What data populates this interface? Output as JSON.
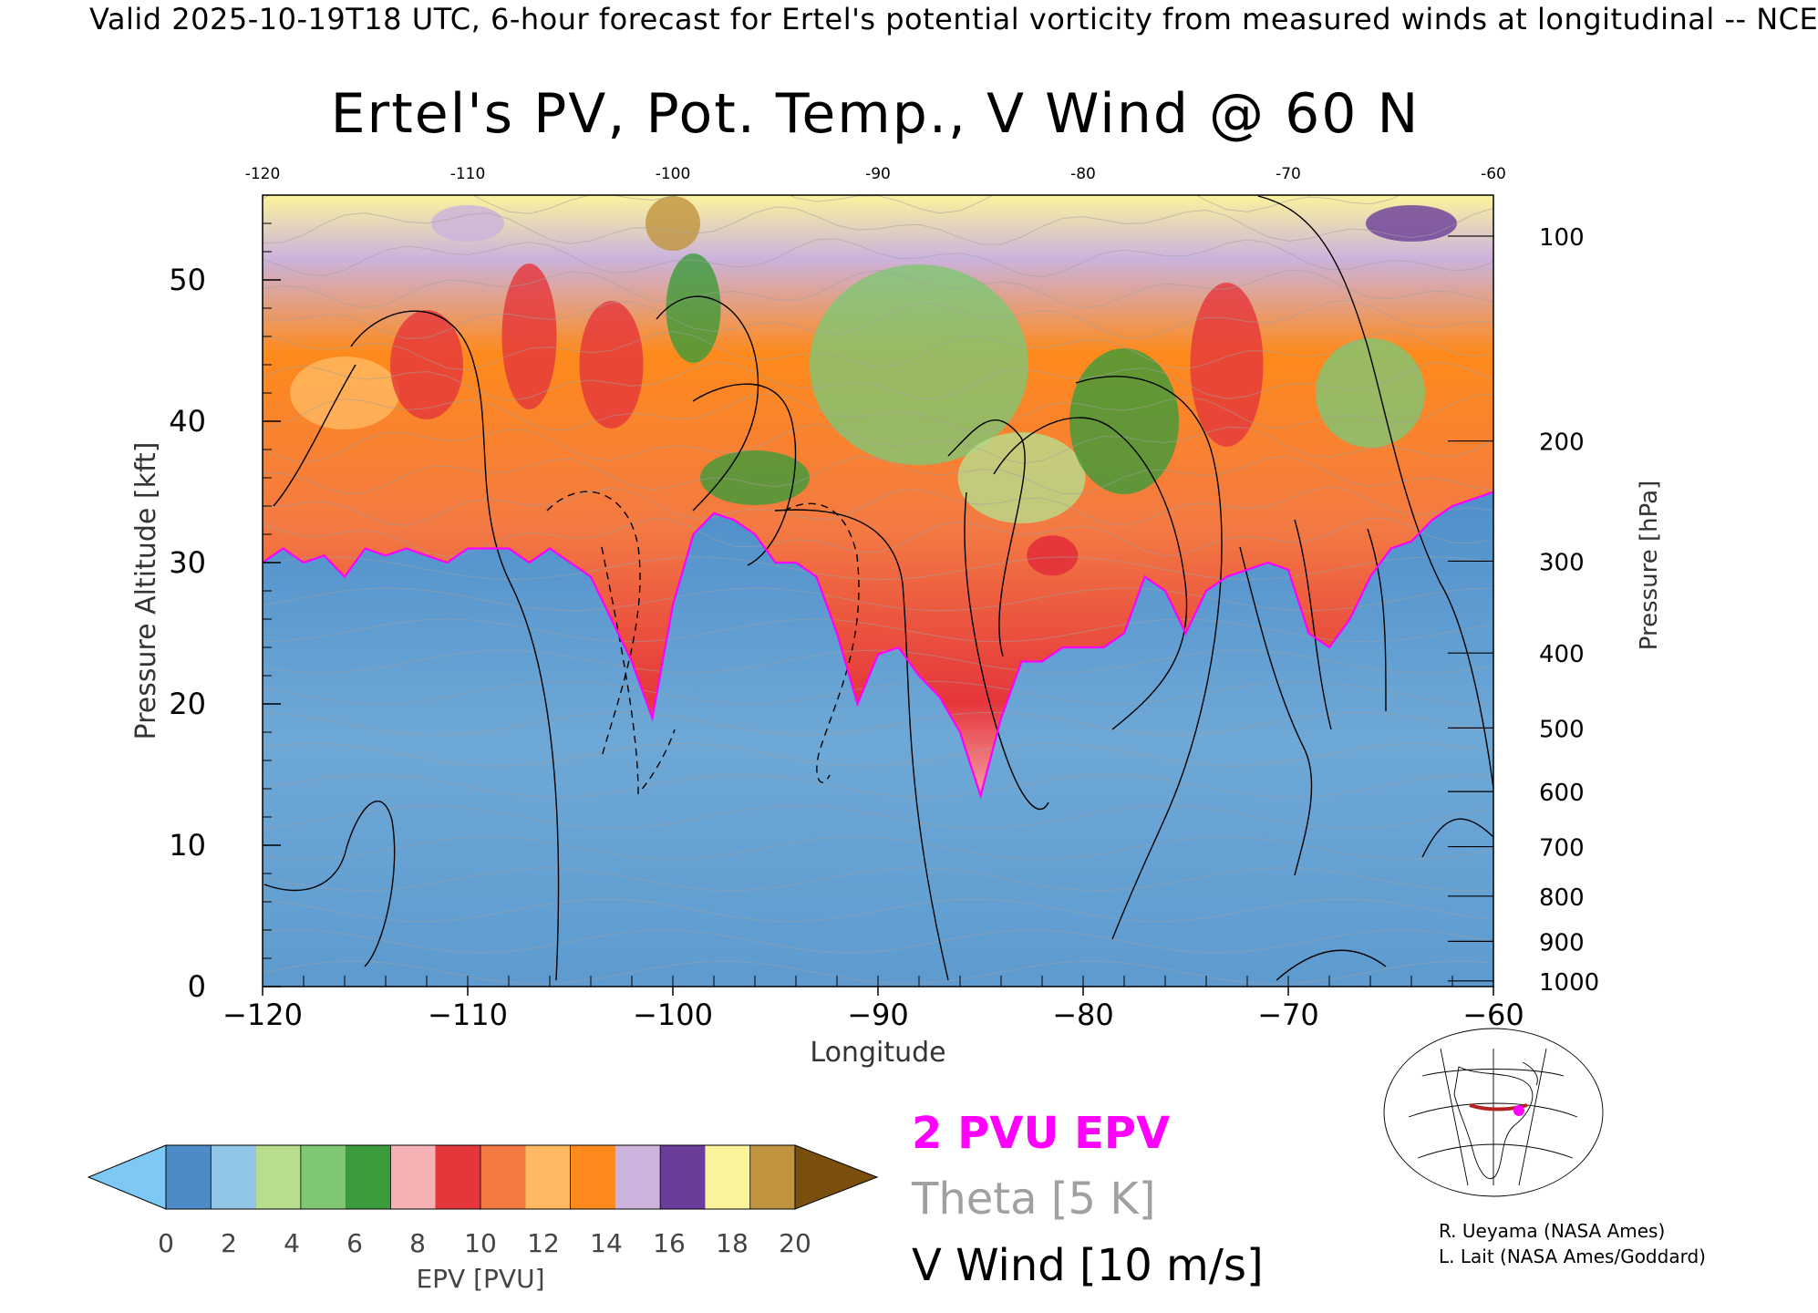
{
  "header": {
    "valid_line": "Valid 2025-10-19T18 UTC, 6-hour forecast for Ertel's potential vorticity from measured winds at longitudinal -- NCE"
  },
  "chart_data": {
    "type": "heatmap",
    "title": "Ertel's PV, Pot. Temp., V Wind @ 60 N",
    "xlabel": "Longitude",
    "ylabel": "Pressure Altitude [kft]",
    "y2label": "Pressure [hPa]",
    "xlim": [
      -120,
      -60
    ],
    "ylim": [
      0,
      56
    ],
    "x_ticks": [
      -120,
      -110,
      -100,
      -90,
      -80,
      -70,
      -60
    ],
    "x_tick_labels": [
      "−120",
      "−110",
      "−100",
      "−90",
      "−80",
      "−70",
      "−60"
    ],
    "x_top_tick_labels": [
      "-120",
      "-110",
      "-100",
      "-90",
      "-80",
      "-70",
      "-60"
    ],
    "y_ticks": [
      0,
      10,
      20,
      30,
      40,
      50
    ],
    "y_tick_labels": [
      "0",
      "10",
      "20",
      "30",
      "40",
      "50"
    ],
    "pressure_ticks": [
      {
        "hpa": 100,
        "kft": 53.1,
        "label": "100"
      },
      {
        "hpa": 200,
        "kft": 38.6,
        "label": "200"
      },
      {
        "hpa": 300,
        "kft": 30.1,
        "label": "300"
      },
      {
        "hpa": 400,
        "kft": 23.6,
        "label": "400"
      },
      {
        "hpa": 500,
        "kft": 18.3,
        "label": "500"
      },
      {
        "hpa": 600,
        "kft": 13.8,
        "label": "600"
      },
      {
        "hpa": 700,
        "kft": 9.9,
        "label": "700"
      },
      {
        "hpa": 800,
        "kft": 6.4,
        "label": "800"
      },
      {
        "hpa": 900,
        "kft": 3.2,
        "label": "900"
      },
      {
        "hpa": 1000,
        "kft": 0.4,
        "label": "1000"
      }
    ],
    "tropopause_2pvu": {
      "x": [
        -120,
        -119,
        -118,
        -117,
        -116,
        -115,
        -114,
        -113,
        -112,
        -111,
        -110,
        -109,
        -108,
        -107,
        -106,
        -105,
        -104,
        -103,
        -102,
        -101,
        -100,
        -99,
        -98,
        -97,
        -96,
        -95,
        -94,
        -93,
        -92,
        -91,
        -90,
        -89,
        -88,
        -87,
        -86,
        -85,
        -84,
        -83,
        -82,
        -81,
        -80,
        -79,
        -78,
        -77,
        -76,
        -75,
        -74,
        -73,
        -72,
        -71,
        -70,
        -69,
        -68,
        -67,
        -66,
        -65,
        -64,
        -63,
        -62,
        -61,
        -60
      ],
      "kft": [
        30,
        31,
        30,
        30.5,
        29,
        31,
        30.5,
        31,
        30.5,
        30,
        31,
        31,
        31,
        30,
        31,
        30,
        29,
        26,
        23,
        19,
        27,
        32,
        33.5,
        33,
        32,
        30,
        30,
        29,
        25,
        20,
        23.5,
        24,
        22,
        20.5,
        18,
        13.5,
        19,
        23,
        23,
        24,
        24,
        24,
        25,
        29,
        28,
        25,
        28,
        29,
        29.5,
        30,
        29.5,
        25,
        24,
        26,
        29,
        31,
        31.5,
        33,
        34,
        34.5,
        35
      ]
    },
    "pv_colorbar": {
      "label": "EPV [PVU]",
      "ticks": [
        0,
        2,
        4,
        6,
        8,
        10,
        12,
        14,
        16,
        18,
        20
      ],
      "tick_labels": [
        "0",
        "2",
        "4",
        "6",
        "8",
        "10",
        "12",
        "14",
        "16",
        "18",
        "20"
      ],
      "under_color": "#7ec8f5",
      "over_color": "#7a4f0e",
      "colors": [
        "#4b8bc7",
        "#92c6e6",
        "#b8dd8c",
        "#7fc773",
        "#3c9b3a",
        "#f6b1b5",
        "#e5363b",
        "#f37a43",
        "#ffb961",
        "#fe8a1c",
        "#cbb3dd",
        "#6a3d9a",
        "#fbf39c",
        "#c0933f"
      ]
    },
    "legend": {
      "pv_label": "2 PVU EPV",
      "pv_color": "#ff00ff",
      "theta_label": "Theta [5 K]",
      "theta_color": "#a0a0a0",
      "wind_label": "V Wind [10 m/s]",
      "wind_color": "#000000"
    },
    "inset_map": {
      "description_icon": "globe-map-icon",
      "section_color": "#b22222",
      "marker_color": "#ff00ff"
    }
  },
  "credits": {
    "line1": "R. Ueyama (NASA Ames)",
    "line2": "L. Lait (NASA Ames/Goddard)"
  }
}
